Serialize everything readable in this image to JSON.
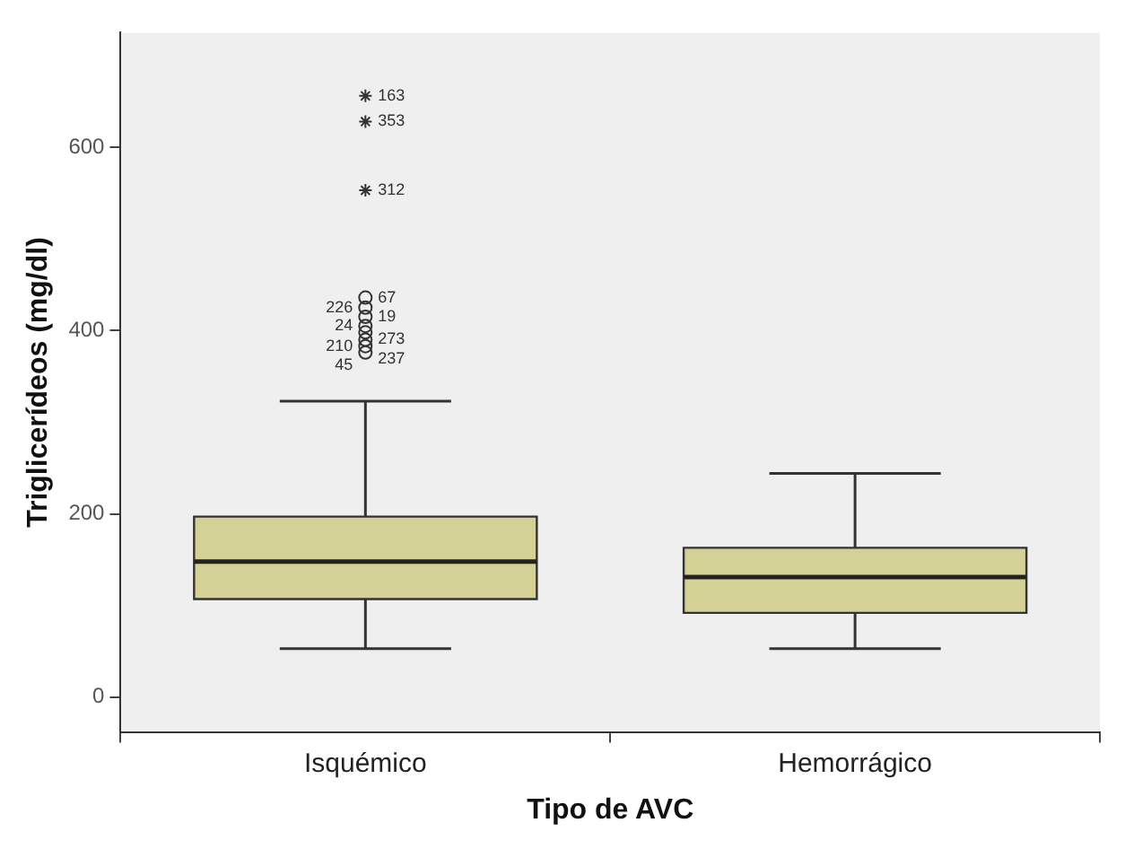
{
  "chart_data": {
    "type": "box",
    "xlabel": "Tipo de AVC",
    "ylabel": "Triglicerídeos (mg/dl)",
    "categories": [
      "Isquémico",
      "Hemorrágico"
    ],
    "series": [
      {
        "type": "box",
        "color": "#d4d196",
        "boxes": [
          {
            "low": 53,
            "q1": 107,
            "median": 148,
            "q3": 197,
            "high": 323
          },
          {
            "low": 53,
            "q1": 92,
            "median": 131,
            "q3": 163,
            "high": 244
          }
        ]
      },
      {
        "type": "scatter",
        "marker": "cross",
        "color": "#333333",
        "x": [
          "Isquémico",
          "Isquémico",
          "Isquémico"
        ],
        "values": [
          656,
          628,
          553
        ]
      },
      {
        "type": "scatter",
        "marker": "circle",
        "color": "#333333",
        "x": [
          "Isquémico",
          "Isquémico",
          "Isquémico",
          "Isquémico",
          "Isquémico",
          "Isquémico",
          "Isquémico",
          "Isquémico"
        ],
        "values": [
          436,
          425,
          415,
          405,
          398,
          390,
          383,
          376
        ]
      }
    ],
    "ylim": [
      -38,
      725
    ],
    "yticks": [
      0,
      200,
      400,
      600
    ],
    "grid": false,
    "legend": false,
    "annotations": [
      {
        "text": "163",
        "x": "Isquémico",
        "y": 656
      },
      {
        "text": "353",
        "x": "Isquémico",
        "y": 628
      },
      {
        "text": "312",
        "x": "Isquémico",
        "y": 553
      },
      {
        "text": "67",
        "x": "Isquémico",
        "y": 436
      },
      {
        "text": "226",
        "x": "Isquémico",
        "y": 425
      },
      {
        "text": "19",
        "x": "Isquémico",
        "y": 415
      },
      {
        "text": "24",
        "x": "Isquémico",
        "y": 405
      },
      {
        "text": "273",
        "x": "Isquémico",
        "y": 398
      },
      {
        "text": "210",
        "x": "Isquémico",
        "y": 390
      },
      {
        "text": "237",
        "x": "Isquémico",
        "y": 383
      },
      {
        "text": "45",
        "x": "Isquémico",
        "y": 376
      }
    ]
  }
}
